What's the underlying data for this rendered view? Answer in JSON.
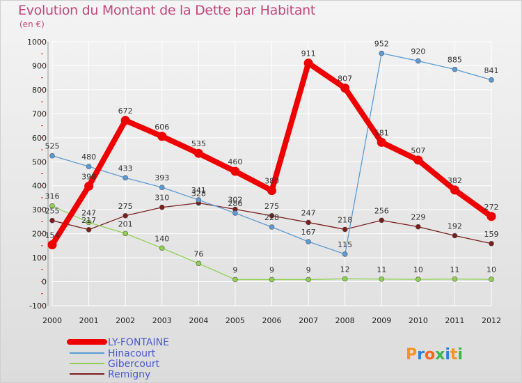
{
  "title": "Evolution du Montant de la Dette par Habitant",
  "subtitle": "(en €)",
  "logo": "Proxiti",
  "colors": {
    "title": "#c0477a",
    "LY-FONTAINE": "#ee0000",
    "Hinacourt": "#5b9bd5",
    "Gibercourt": "#8fd14f",
    "Remigny": "#7a1e1e"
  },
  "chart_data": {
    "type": "line",
    "title": "Evolution du Montant de la Dette par Habitant",
    "ylabel": "(en €)",
    "x": [
      "2000",
      "2001",
      "2002",
      "2003",
      "2004",
      "2005",
      "2006",
      "2007",
      "2008",
      "2009",
      "2010",
      "2011",
      "2012"
    ],
    "ylim": [
      -100,
      1000
    ],
    "yticks": [
      -100,
      0,
      100,
      200,
      300,
      400,
      500,
      600,
      700,
      800,
      900,
      1000
    ],
    "grid": true,
    "legend": "bottom-left",
    "series": [
      {
        "name": "LY-FONTAINE",
        "color": "#ee0000",
        "values": [
          154,
          398,
          672,
          606,
          535,
          460,
          380,
          911,
          807,
          581,
          507,
          382,
          272
        ],
        "labels": [
          "154",
          "398",
          "672",
          "606",
          "535",
          "460",
          "380",
          "911",
          "807",
          "581",
          "507",
          "382",
          "272"
        ]
      },
      {
        "name": "Hinacourt",
        "color": "#5b9bd5",
        "values": [
          525,
          480,
          433,
          393,
          341,
          286,
          228,
          167,
          115,
          952,
          920,
          885,
          841
        ],
        "labels": [
          "525",
          "480",
          "433",
          "393",
          "341",
          "286",
          "228",
          "167",
          "115",
          "952",
          "920",
          "885",
          "841"
        ]
      },
      {
        "name": "Gibercourt",
        "color": "#8fd14f",
        "values": [
          316,
          247,
          201,
          140,
          76,
          9,
          9,
          9,
          12,
          11,
          10,
          11,
          10
        ],
        "labels": [
          "316",
          "247",
          "201",
          "140",
          "76",
          "9",
          "9",
          "9",
          "12",
          "11",
          "10",
          "11",
          "10"
        ]
      },
      {
        "name": "Remigny",
        "color": "#7a1e1e",
        "values": [
          255,
          217,
          275,
          310,
          328,
          302,
          275,
          247,
          218,
          256,
          229,
          192,
          159
        ],
        "labels": [
          "255",
          "217",
          "275",
          "310",
          "328",
          "302",
          "275",
          "247",
          "218",
          "256",
          "229",
          "192",
          "159"
        ]
      }
    ]
  }
}
